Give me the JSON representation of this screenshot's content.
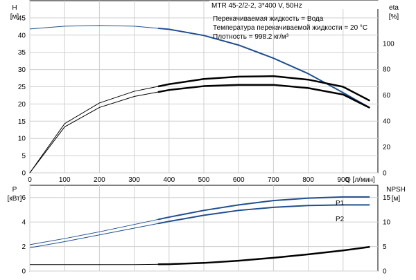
{
  "header": {
    "model": "MTR 45-2/2-2, 3*400 V, 50Hz",
    "fluid_line": "Перекачиваемая жидкость = Вода",
    "temperature_line": "Температура перекачиваемой жидкости = 20 °C",
    "density_line": "Плотность = 998.2 кг/м³"
  },
  "colors": {
    "dark_blue": "#1f4e8f",
    "black": "#000000",
    "grid": "#cfcfcf"
  },
  "chart_data": [
    {
      "type": "line",
      "panel": "top",
      "xlabel": "Q [л/мин]",
      "x_ticks": [
        0,
        100,
        200,
        300,
        400,
        500,
        600,
        700,
        800,
        900
      ],
      "xlim": [
        0,
        1000
      ],
      "y_left": {
        "label": "H",
        "unit": "[м]",
        "ticks": [
          0,
          5,
          10,
          15,
          20,
          25,
          30,
          35,
          40,
          45
        ],
        "lim": [
          0,
          50
        ]
      },
      "y_right": {
        "label": "eta",
        "unit": "[%]",
        "ticks": [
          0,
          20,
          40,
          60,
          80,
          100
        ],
        "lim": [
          0,
          133
        ]
      },
      "grid": true,
      "series": [
        {
          "id": "H",
          "axis": "left",
          "color": "#1f4e8f",
          "operating_from": 370,
          "x": [
            0,
            100,
            200,
            300,
            400,
            500,
            600,
            700,
            800,
            900,
            975
          ],
          "y": [
            41.8,
            42.6,
            42.8,
            42.6,
            41.7,
            39.9,
            37.1,
            33.3,
            28.8,
            23.3,
            19.0
          ]
        },
        {
          "id": "eta-1",
          "axis": "right",
          "color": "#000000",
          "operating_from": 370,
          "x": [
            0,
            100,
            200,
            300,
            400,
            500,
            600,
            700,
            800,
            900,
            975
          ],
          "y": [
            0,
            38.0,
            54.0,
            63.0,
            68.5,
            72.5,
            74.3,
            74.7,
            72.0,
            66.5,
            56.0
          ]
        },
        {
          "id": "eta-2",
          "axis": "right",
          "color": "#000000",
          "operating_from": 370,
          "x": [
            0,
            100,
            200,
            300,
            400,
            500,
            600,
            700,
            800,
            900,
            975
          ],
          "y": [
            0,
            35.5,
            50.5,
            59.0,
            64.0,
            67.0,
            68.0,
            68.0,
            65.5,
            60.5,
            50.5
          ]
        }
      ]
    },
    {
      "type": "line",
      "panel": "bottom",
      "xlim": [
        0,
        1000
      ],
      "y_left": {
        "label": "P",
        "unit": "[кВт]",
        "ticks": [
          0,
          2,
          4,
          6
        ],
        "lim": [
          0,
          7
        ]
      },
      "y_right": {
        "label": "NPSH",
        "unit": "[м]",
        "ticks": [
          0,
          5,
          10,
          15
        ],
        "lim": [
          0,
          17.5
        ]
      },
      "grid": true,
      "series": [
        {
          "id": "P1",
          "name": "P1",
          "axis": "left",
          "color": "#1f4e8f",
          "operating_from": 370,
          "x": [
            0,
            100,
            200,
            300,
            400,
            500,
            600,
            700,
            800,
            900,
            975
          ],
          "y": [
            2.15,
            2.65,
            3.2,
            3.8,
            4.4,
            4.95,
            5.4,
            5.75,
            5.95,
            6.05,
            6.05
          ]
        },
        {
          "id": "P2",
          "name": "P2",
          "axis": "left",
          "color": "#1f4e8f",
          "operating_from": 370,
          "x": [
            0,
            100,
            200,
            300,
            400,
            500,
            600,
            700,
            800,
            900,
            975
          ],
          "y": [
            1.9,
            2.4,
            2.95,
            3.5,
            4.05,
            4.55,
            4.95,
            5.2,
            5.35,
            5.4,
            5.4
          ]
        },
        {
          "id": "NPSH",
          "axis": "right",
          "color": "#000000",
          "operating_from": 370,
          "x": [
            0,
            100,
            200,
            300,
            400,
            500,
            600,
            700,
            800,
            900,
            975
          ],
          "y": [
            1.3,
            1.3,
            1.3,
            1.3,
            1.4,
            1.65,
            2.1,
            2.7,
            3.4,
            4.2,
            4.9
          ]
        }
      ]
    }
  ]
}
